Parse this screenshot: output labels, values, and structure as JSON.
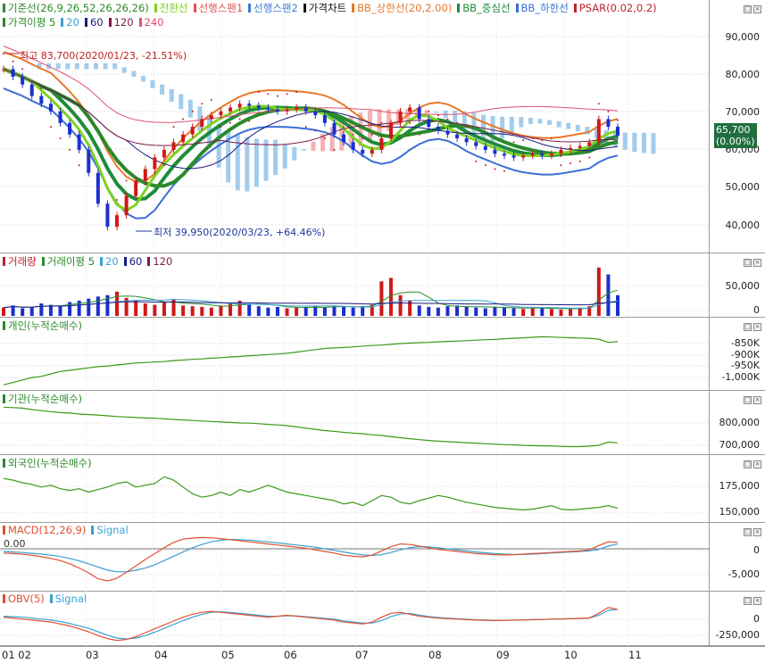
{
  "chart_data": {
    "type": "line",
    "x_labels": [
      "01 02",
      "03",
      "04",
      "05",
      "06",
      "07",
      "08",
      "09",
      "10",
      "11"
    ],
    "panes": [
      {
        "id": "price",
        "legend_row1": [
          {
            "label": "기준선(26,9,26,52,26,26,26)",
            "color": "#2a8a2a"
          },
          {
            "label": "전환선",
            "color": "#7ed321"
          },
          {
            "label": "선행스팬1",
            "color": "#e05050"
          },
          {
            "label": "선행스팬2",
            "color": "#3a7bd5"
          },
          {
            "label": "가격차트",
            "color": "#111111"
          },
          {
            "label": "BB_상한선(20,2.00)",
            "color": "#e8782a"
          },
          {
            "label": "BB_중심선",
            "color": "#1e8c3a"
          },
          {
            "label": "BB_하한선",
            "color": "#3a6fd5"
          },
          {
            "label": "PSAR(0.02,0.2)",
            "color": "#c0202a"
          }
        ],
        "legend_row2": [
          {
            "label": "가격이평 5",
            "color": "#2a8a2a"
          },
          {
            "label": "20",
            "color": "#3aa0d5"
          },
          {
            "label": "60",
            "color": "#1a1a80"
          },
          {
            "label": "120",
            "color": "#7a1a4a"
          },
          {
            "label": "240",
            "color": "#e05070"
          }
        ],
        "yticks": [
          "90,000",
          "80,000",
          "70,000",
          "60,000",
          "50,000",
          "40,000"
        ],
        "ylim": [
          36000,
          94000
        ],
        "high_annotation": "최고 83,700(2020/01/23, -21.51%)",
        "low_annotation": "최저 39,950(2020/03/23, +64.46%)",
        "current_price": "65,700",
        "current_change": "(0.00%)",
        "closes": [
          83000,
          81000,
          79000,
          76000,
          74000,
          72000,
          69000,
          66000,
          62000,
          56000,
          48000,
          42000,
          45000,
          50000,
          54000,
          57000,
          60000,
          62000,
          64000,
          66000,
          68000,
          70000,
          71000,
          72000,
          73000,
          74000,
          73500,
          73000,
          72500,
          72000,
          72500,
          73000,
          72000,
          71000,
          69000,
          66000,
          64000,
          62000,
          61000,
          62000,
          65000,
          69000,
          72000,
          73000,
          70000,
          68000,
          67000,
          66000,
          65000,
          64000,
          63000,
          62000,
          61000,
          60500,
          60000,
          60500,
          61000,
          60500,
          61000,
          62000,
          62500,
          63000,
          64000,
          70000,
          68000,
          65700
        ]
      },
      {
        "id": "volume",
        "legend": [
          {
            "label": "거래량",
            "color": "#c0202a"
          },
          {
            "label": "거래이평 5",
            "color": "#2a8a2a"
          },
          {
            "label": "20",
            "color": "#3aa0d5"
          },
          {
            "label": "60",
            "color": "#1a1a80"
          },
          {
            "label": "120",
            "color": "#7a1a4a"
          }
        ],
        "yticks": [
          "50,000",
          "0"
        ],
        "ylim": [
          0,
          80000
        ],
        "values": [
          12000,
          15000,
          11000,
          13000,
          18000,
          16000,
          14000,
          20000,
          22000,
          25000,
          28000,
          30000,
          35000,
          26000,
          22000,
          18000,
          16000,
          20000,
          24000,
          15000,
          14000,
          13000,
          12000,
          15000,
          18000,
          22000,
          16000,
          14000,
          12000,
          13000,
          11000,
          12000,
          13000,
          14000,
          12000,
          15000,
          13000,
          12000,
          14000,
          16000,
          50000,
          55000,
          30000,
          22000,
          15000,
          13000,
          12000,
          14000,
          15000,
          13000,
          12000,
          11000,
          13000,
          12000,
          11000,
          10000,
          12000,
          11000,
          10000,
          9000,
          10000,
          12000,
          14000,
          70000,
          60000,
          30000
        ]
      },
      {
        "id": "individual",
        "legend": [
          {
            "label": "개인(누적순매수)",
            "color": "#2a8a2a"
          }
        ],
        "yticks": [
          "-850K",
          "-900K",
          "-950K",
          "-1,000K"
        ],
        "ylim": [
          -1030000,
          -780000
        ],
        "values": [
          -1020000,
          -1010000,
          -1000000,
          -990000,
          -985000,
          -975000,
          -965000,
          -960000,
          -955000,
          -950000,
          -945000,
          -942000,
          -938000,
          -934000,
          -930000,
          -928000,
          -926000,
          -924000,
          -920000,
          -918000,
          -915000,
          -913000,
          -910000,
          -908000,
          -905000,
          -903000,
          -900000,
          -898000,
          -895000,
          -893000,
          -890000,
          -885000,
          -880000,
          -875000,
          -870000,
          -868000,
          -866000,
          -864000,
          -860000,
          -858000,
          -856000,
          -853000,
          -850000,
          -848000,
          -846000,
          -845000,
          -843000,
          -841000,
          -840000,
          -838000,
          -836000,
          -834000,
          -833000,
          -830000,
          -828000,
          -826000,
          -824000,
          -822000,
          -823000,
          -825000,
          -826000,
          -827000,
          -828000,
          -832000,
          -845000,
          -842000
        ]
      },
      {
        "id": "institution",
        "legend": [
          {
            "label": "기관(누적순매수)",
            "color": "#2a8a2a"
          }
        ],
        "yticks": [
          "800,000",
          "700,000"
        ],
        "ylim": [
          670000,
          880000
        ],
        "values": [
          850000,
          848000,
          846000,
          840000,
          836000,
          832000,
          828000,
          826000,
          822000,
          820000,
          818000,
          815000,
          812000,
          810000,
          808000,
          806000,
          805000,
          803000,
          800000,
          798000,
          796000,
          794000,
          792000,
          790000,
          788000,
          786000,
          785000,
          783000,
          780000,
          778000,
          775000,
          770000,
          765000,
          760000,
          755000,
          752000,
          748000,
          745000,
          742000,
          738000,
          735000,
          730000,
          726000,
          722000,
          718000,
          715000,
          712000,
          710000,
          708000,
          706000,
          704000,
          702000,
          700000,
          698000,
          697000,
          695000,
          694000,
          693000,
          692000,
          691000,
          690000,
          690000,
          692000,
          695000,
          708000,
          705000
        ]
      },
      {
        "id": "foreign",
        "legend": [
          {
            "label": "외국인(누적순매수)",
            "color": "#2a8a2a"
          }
        ],
        "yticks": [
          "175,000",
          "150,000"
        ],
        "ylim": [
          140000,
          205000
        ],
        "values": [
          188000,
          186000,
          183000,
          181000,
          178000,
          180000,
          176000,
          174000,
          176000,
          172000,
          175000,
          178000,
          182000,
          184000,
          178000,
          180000,
          182000,
          190000,
          186000,
          178000,
          170000,
          166000,
          168000,
          172000,
          168000,
          175000,
          172000,
          176000,
          180000,
          176000,
          172000,
          170000,
          168000,
          166000,
          164000,
          162000,
          158000,
          160000,
          156000,
          162000,
          168000,
          166000,
          160000,
          158000,
          162000,
          165000,
          168000,
          166000,
          163000,
          160000,
          158000,
          156000,
          154000,
          153000,
          152000,
          151000,
          152000,
          154000,
          156000,
          152000,
          151000,
          152000,
          153000,
          154000,
          156000,
          153000
        ]
      },
      {
        "id": "macd",
        "legend": [
          {
            "label": "MACD(12,26,9)",
            "color": "#e05030"
          },
          {
            "label": "Signal",
            "color": "#3aa0d5"
          }
        ],
        "zero_label": "0.00",
        "yticks": [
          "0",
          "-5,000"
        ],
        "ylim": [
          -7500,
          3500
        ],
        "macd": [
          -800,
          -900,
          -1000,
          -1200,
          -1500,
          -1800,
          -2200,
          -2800,
          -3600,
          -4500,
          -5600,
          -6000,
          -5500,
          -4400,
          -3200,
          -2000,
          -900,
          200,
          1200,
          1800,
          2000,
          2100,
          2050,
          1900,
          1700,
          1500,
          1300,
          1100,
          900,
          700,
          500,
          300,
          100,
          -200,
          -500,
          -800,
          -1200,
          -1400,
          -1500,
          -1200,
          -400,
          400,
          900,
          800,
          500,
          200,
          -100,
          -300,
          -500,
          -700,
          -900,
          -1000,
          -1100,
          -1150,
          -1100,
          -1000,
          -900,
          -800,
          -700,
          -600,
          -500,
          -400,
          -200,
          600,
          1300,
          1200
        ],
        "signal": [
          -500,
          -600,
          -700,
          -850,
          -1000,
          -1200,
          -1450,
          -1800,
          -2250,
          -2800,
          -3400,
          -4000,
          -4300,
          -4300,
          -4000,
          -3600,
          -3000,
          -2200,
          -1400,
          -600,
          200,
          800,
          1300,
          1600,
          1750,
          1700,
          1600,
          1450,
          1300,
          1100,
          900,
          700,
          500,
          300,
          0,
          -300,
          -600,
          -900,
          -1150,
          -1250,
          -1100,
          -700,
          -200,
          200,
          400,
          350,
          200,
          0,
          -200,
          -400,
          -600,
          -750,
          -900,
          -1000,
          -1050,
          -1050,
          -1000,
          -900,
          -800,
          -700,
          -600,
          -500,
          -400,
          -100,
          500,
          900
        ]
      },
      {
        "id": "obv",
        "legend": [
          {
            "label": "OBV(5)",
            "color": "#e05030"
          },
          {
            "label": "Signal",
            "color": "#3aa0d5"
          }
        ],
        "yticks": [
          "0",
          "-250,000"
        ],
        "ylim": [
          -330000,
          130000
        ],
        "obv": [
          -60000,
          -70000,
          -80000,
          -90000,
          -100000,
          -110000,
          -130000,
          -150000,
          -180000,
          -210000,
          -250000,
          -280000,
          -300000,
          -290000,
          -260000,
          -220000,
          -180000,
          -140000,
          -100000,
          -60000,
          -30000,
          -10000,
          0,
          -10000,
          -20000,
          -30000,
          -40000,
          -50000,
          -60000,
          -50000,
          -40000,
          -50000,
          -60000,
          -70000,
          -80000,
          -90000,
          -110000,
          -120000,
          -130000,
          -110000,
          -60000,
          -20000,
          -10000,
          -30000,
          -50000,
          -60000,
          -70000,
          -75000,
          -80000,
          -85000,
          -90000,
          -92000,
          -95000,
          -93000,
          -90000,
          -88000,
          -85000,
          -83000,
          -80000,
          -78000,
          -75000,
          -72000,
          -68000,
          -20000,
          40000,
          20000
        ],
        "signal": [
          -50000,
          -55000,
          -60000,
          -70000,
          -80000,
          -90000,
          -105000,
          -125000,
          -150000,
          -175000,
          -210000,
          -245000,
          -275000,
          -285000,
          -275000,
          -250000,
          -215000,
          -175000,
          -135000,
          -95000,
          -60000,
          -30000,
          -10000,
          -5000,
          -12000,
          -20000,
          -30000,
          -40000,
          -50000,
          -50000,
          -45000,
          -47000,
          -55000,
          -63000,
          -72000,
          -82000,
          -97000,
          -110000,
          -122000,
          -120000,
          -95000,
          -55000,
          -25000,
          -22000,
          -38000,
          -52000,
          -63000,
          -70000,
          -76000,
          -82000,
          -87000,
          -90000,
          -93000,
          -93000,
          -91000,
          -89000,
          -86000,
          -84000,
          -81000,
          -79000,
          -76000,
          -73000,
          -70000,
          -40000,
          10000,
          20000
        ]
      }
    ]
  }
}
